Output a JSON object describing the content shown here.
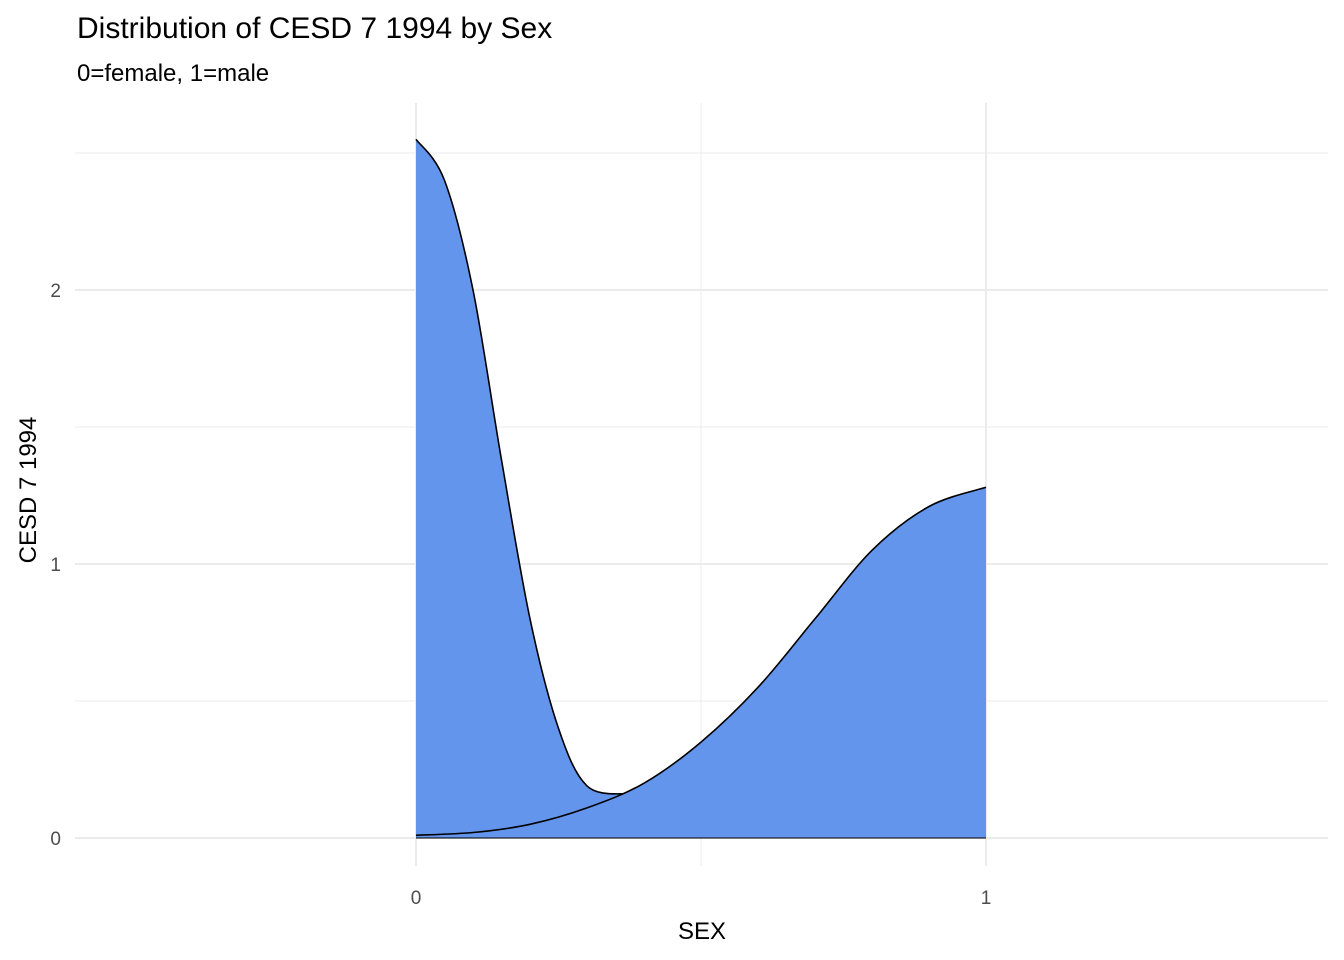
{
  "chart_data": {
    "type": "area",
    "title": "Distribution of CESD 7 1994 by Sex",
    "subtitle": "0=female, 1=male",
    "xlabel": "SEX",
    "ylabel": "CESD 7 1994",
    "xlim": [
      -0.6,
      1.6
    ],
    "ylim": [
      -0.1,
      2.55
    ],
    "x_ticks": [
      0,
      1
    ],
    "y_ticks": [
      0,
      1,
      2
    ],
    "minor_y": [
      0.5,
      1.5,
      2.5
    ],
    "grid": true,
    "fill_color": "#6495ED",
    "line_color": "#000000",
    "grid_color": "#EBEBEB",
    "series": [
      {
        "x": [
          0.0,
          0.05,
          0.1,
          0.15,
          0.2,
          0.25,
          0.3,
          0.37
        ],
        "values": [
          2.55,
          2.4,
          2.0,
          1.38,
          0.8,
          0.4,
          0.19,
          0.16
        ]
      },
      {
        "x": [
          0.0,
          0.1,
          0.2,
          0.3,
          0.4,
          0.5,
          0.6,
          0.7,
          0.8,
          0.9,
          1.0
        ],
        "values": [
          0.01,
          0.02,
          0.05,
          0.11,
          0.2,
          0.35,
          0.55,
          0.8,
          1.05,
          1.21,
          1.28
        ]
      }
    ]
  }
}
